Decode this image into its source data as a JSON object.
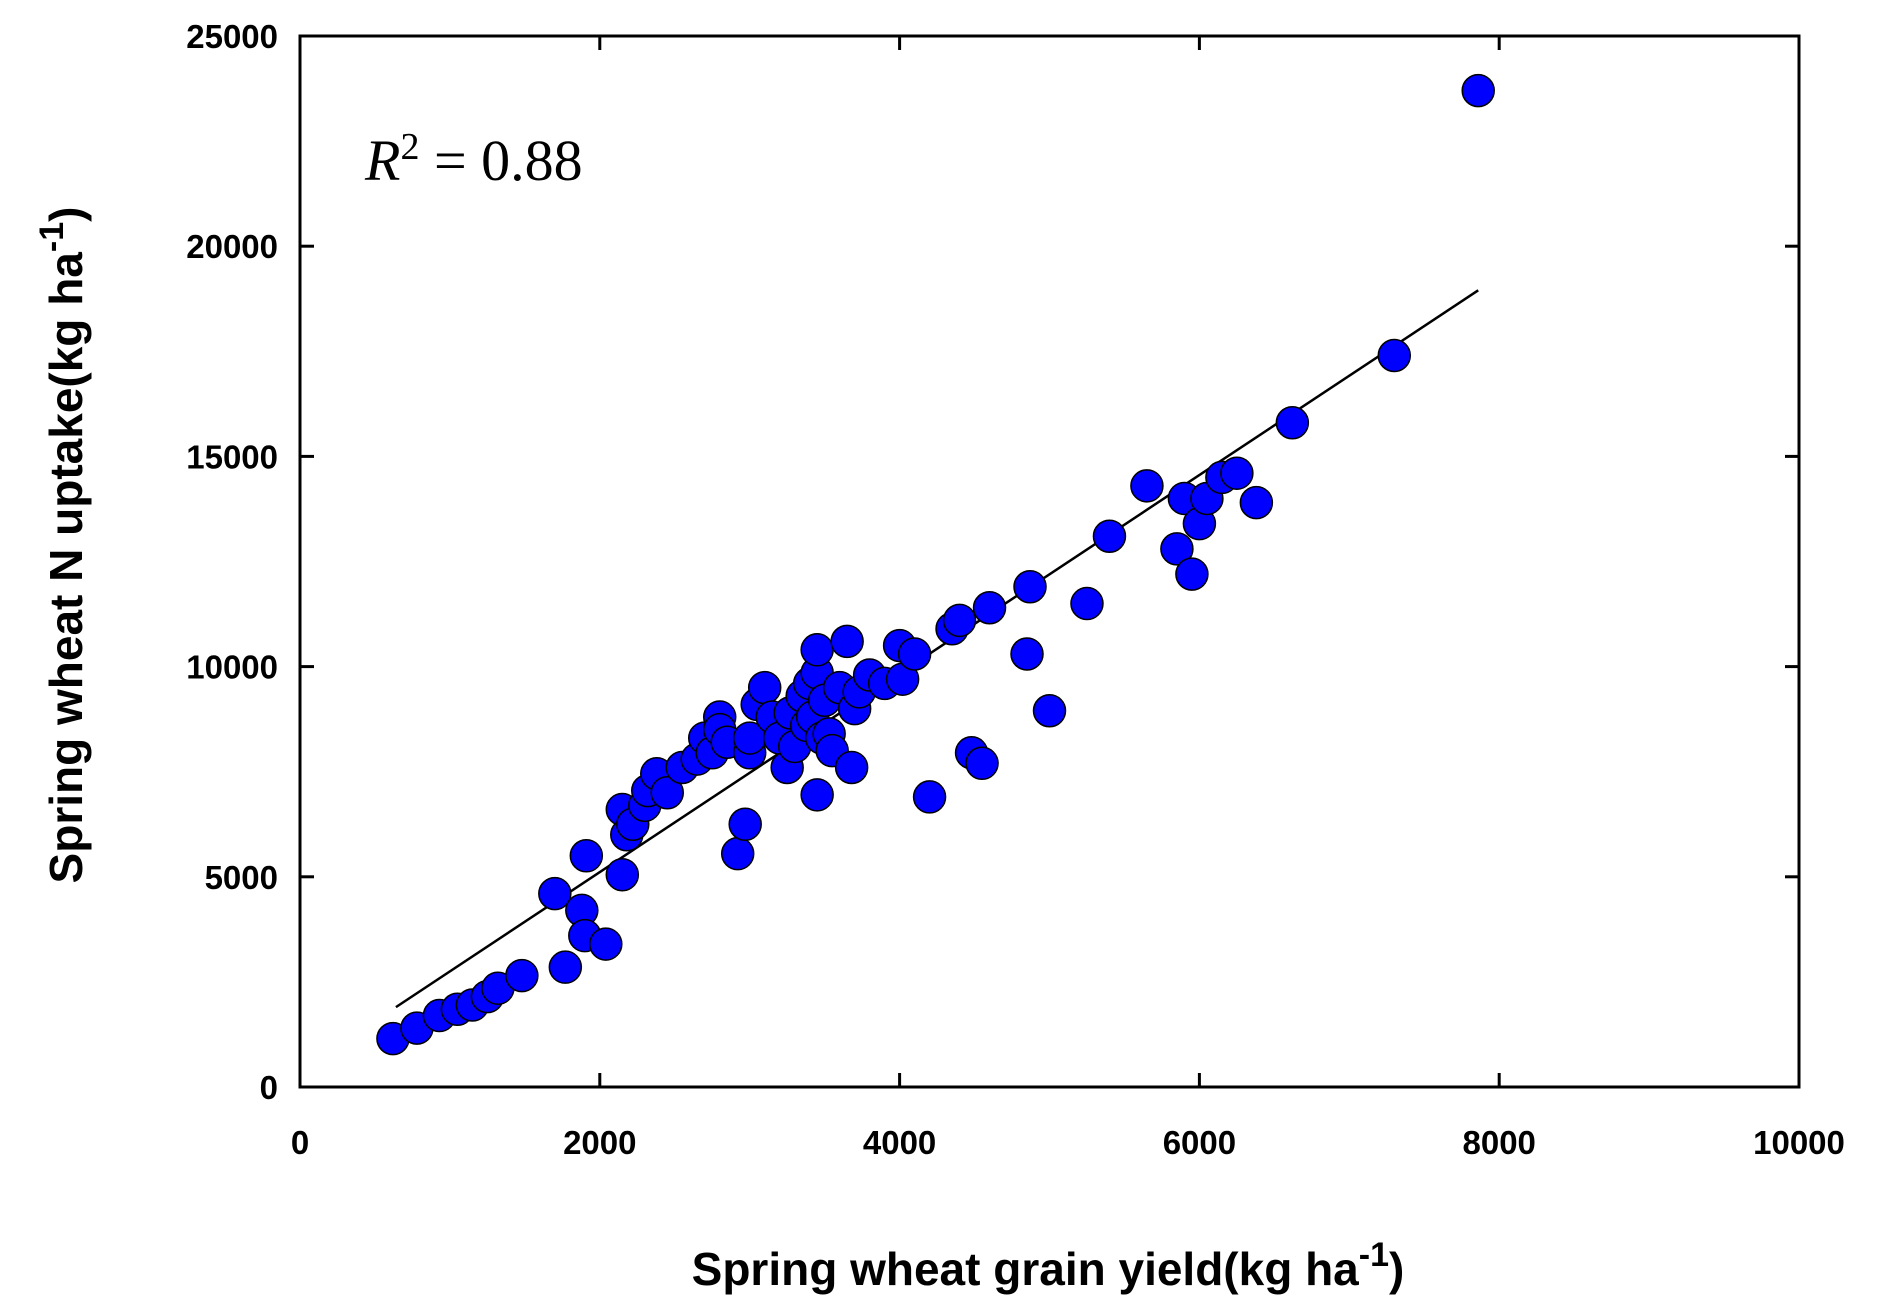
{
  "chart_data": {
    "type": "scatter",
    "xlabel": "Spring wheat grain yield(kg ha",
    "xlabel_sup": "-1",
    "xlabel_end": ")",
    "ylabel": "Spring wheat N uptake(kg ha",
    "ylabel_sup": "-1",
    "ylabel_end": ")",
    "xlim": [
      0,
      10000
    ],
    "ylim": [
      0,
      25000
    ],
    "x_ticks": [
      0,
      2000,
      4000,
      6000,
      8000,
      10000
    ],
    "y_ticks": [
      0,
      5000,
      10000,
      15000,
      20000,
      25000
    ],
    "grid": false,
    "annotation": {
      "r": "R",
      "sup": "2",
      "eq": " = 0.88"
    },
    "marker_color": "#0000ff",
    "marker_edge": "#000000",
    "fit_line": {
      "x": [
        640,
        7860
      ],
      "y": [
        1900,
        18950
      ],
      "color": "#000000"
    },
    "points": [
      [
        620,
        1150
      ],
      [
        780,
        1400
      ],
      [
        930,
        1700
      ],
      [
        1050,
        1850
      ],
      [
        1150,
        1950
      ],
      [
        1250,
        2150
      ],
      [
        1320,
        2350
      ],
      [
        1480,
        2650
      ],
      [
        1700,
        4600
      ],
      [
        1770,
        2850
      ],
      [
        1880,
        4200
      ],
      [
        1900,
        3600
      ],
      [
        1910,
        5500
      ],
      [
        2040,
        3400
      ],
      [
        2150,
        5050
      ],
      [
        2150,
        6600
      ],
      [
        2180,
        6000
      ],
      [
        2220,
        6250
      ],
      [
        2300,
        6700
      ],
      [
        2320,
        7050
      ],
      [
        2380,
        7450
      ],
      [
        2450,
        7000
      ],
      [
        2550,
        7600
      ],
      [
        2650,
        7800
      ],
      [
        2700,
        8300
      ],
      [
        2750,
        7950
      ],
      [
        2800,
        8800
      ],
      [
        2800,
        8500
      ],
      [
        2850,
        8200
      ],
      [
        2920,
        5550
      ],
      [
        2970,
        6250
      ],
      [
        3000,
        7950
      ],
      [
        3000,
        8300
      ],
      [
        3050,
        9100
      ],
      [
        3100,
        9500
      ],
      [
        3150,
        8800
      ],
      [
        3200,
        8300
      ],
      [
        3250,
        7600
      ],
      [
        3270,
        8900
      ],
      [
        3300,
        8100
      ],
      [
        3350,
        9300
      ],
      [
        3380,
        8600
      ],
      [
        3400,
        9600
      ],
      [
        3420,
        8800
      ],
      [
        3450,
        6950
      ],
      [
        3450,
        9850
      ],
      [
        3450,
        10400
      ],
      [
        3480,
        8300
      ],
      [
        3500,
        9200
      ],
      [
        3530,
        8400
      ],
      [
        3550,
        8000
      ],
      [
        3600,
        9500
      ],
      [
        3650,
        10600
      ],
      [
        3680,
        7600
      ],
      [
        3700,
        9000
      ],
      [
        3730,
        9400
      ],
      [
        3800,
        9800
      ],
      [
        3900,
        9600
      ],
      [
        4000,
        10500
      ],
      [
        4020,
        9700
      ],
      [
        4100,
        10300
      ],
      [
        4200,
        6900
      ],
      [
        4350,
        10900
      ],
      [
        4400,
        11100
      ],
      [
        4480,
        7950
      ],
      [
        4550,
        7700
      ],
      [
        4600,
        11400
      ],
      [
        4850,
        10300
      ],
      [
        4870,
        11900
      ],
      [
        5000,
        8950
      ],
      [
        5250,
        11500
      ],
      [
        5400,
        13100
      ],
      [
        5650,
        14300
      ],
      [
        5850,
        12800
      ],
      [
        5900,
        14000
      ],
      [
        5950,
        12200
      ],
      [
        6000,
        13400
      ],
      [
        6050,
        14000
      ],
      [
        6150,
        14500
      ],
      [
        6250,
        14600
      ],
      [
        6380,
        13900
      ],
      [
        6620,
        15800
      ],
      [
        7300,
        17400
      ],
      [
        7860,
        23700
      ]
    ]
  }
}
